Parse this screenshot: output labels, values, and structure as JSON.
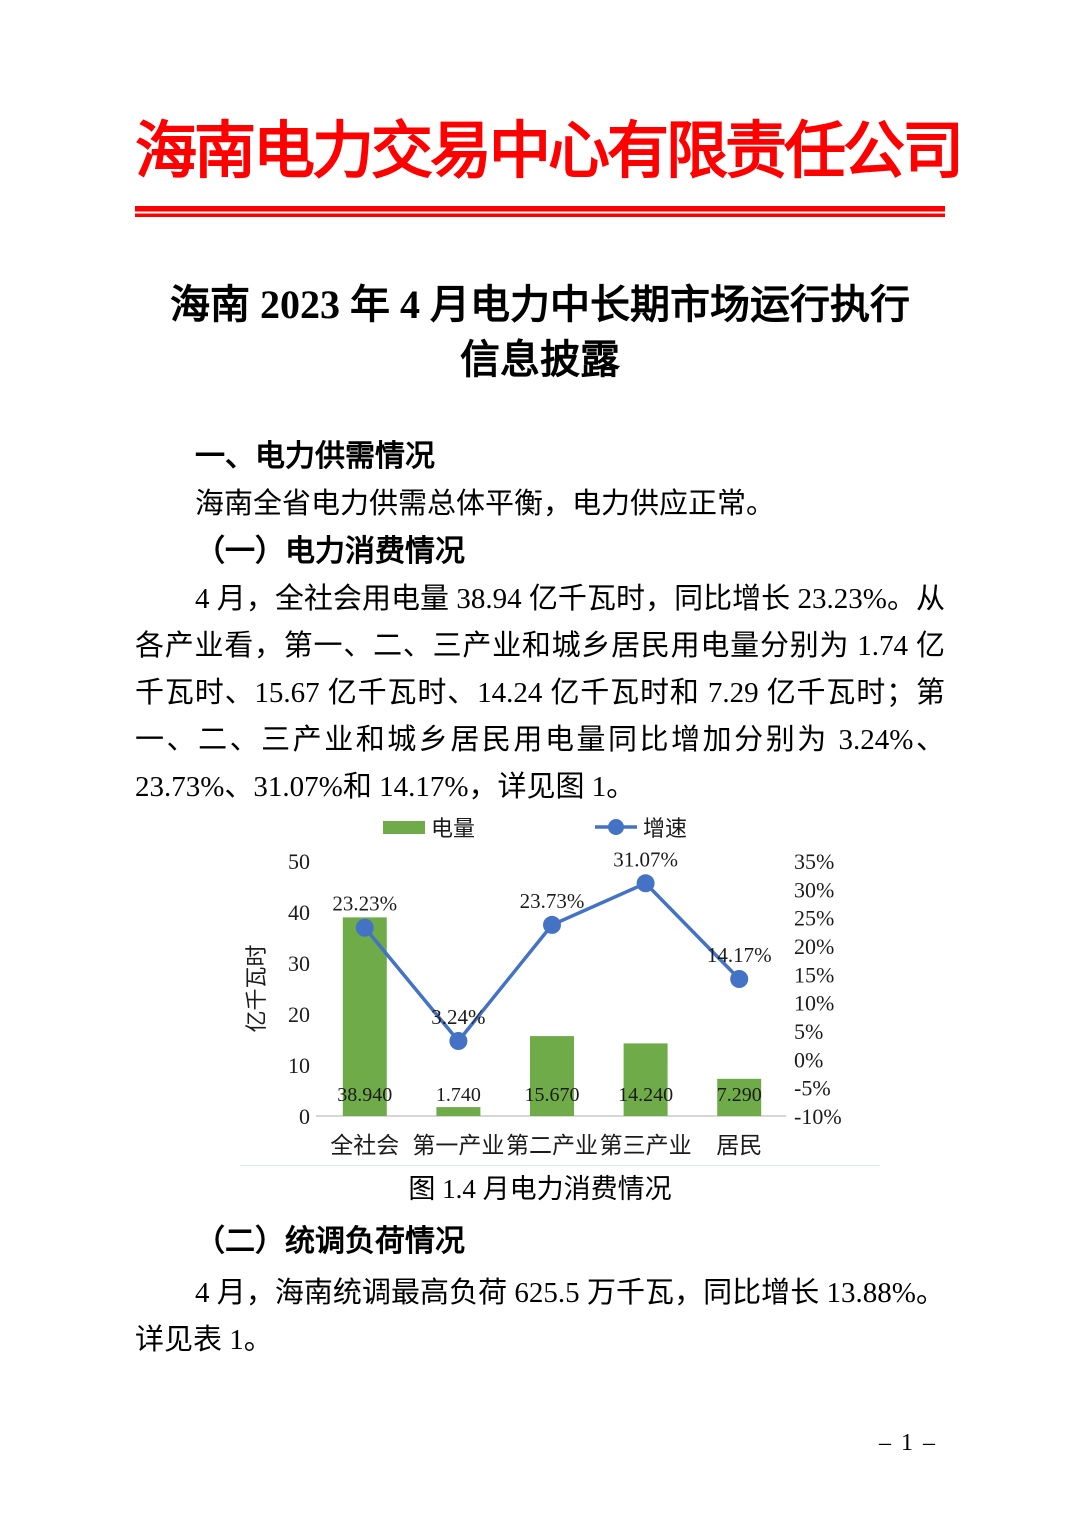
{
  "letterhead": {
    "company": "海南电力交易中心有限责任公司",
    "accent_color": "#fe0000"
  },
  "title": {
    "line1": "海南 2023 年 4 月电力中长期市场运行执行",
    "line2": "信息披露"
  },
  "body": {
    "section1_heading": "一、电力供需情况",
    "p_supply": "海南全省电力供需总体平衡，电力供应正常。",
    "sub1_heading": "（一）电力消费情况",
    "p_consumption": "4 月，全社会用电量 38.94 亿千瓦时，同比增长 23.23%。从各产业看，第一、二、三产业和城乡居民用电量分别为 1.74 亿千瓦时、15.67 亿千瓦时、14.24 亿千瓦时和 7.29 亿千瓦时；第一、二、三产业和城乡居民用电量同比增加分别为 3.24%、23.73%、31.07%和 14.17%，详见图 1。",
    "sub2_heading": "（二）统调负荷情况",
    "p_load": "4 月，海南统调最高负荷 625.5 万千瓦，同比增长 13.88%。详见表 1。"
  },
  "figure": {
    "caption": "图 1.4 月电力消费情况"
  },
  "footer": {
    "page_number": "– 1 –"
  },
  "chart_data": {
    "type": "bar",
    "subtype": "bar+line combo, dual axis",
    "categories": [
      "全社会",
      "第一产业",
      "第二产业",
      "第三产业",
      "居民"
    ],
    "series": [
      {
        "name": "电量",
        "type": "bar",
        "color": "#6fac49",
        "axis": "left",
        "values": [
          38.94,
          1.74,
          15.67,
          14.24,
          7.29
        ],
        "data_labels": [
          "38.940",
          "1.740",
          "15.670",
          "14.240",
          "7.290"
        ]
      },
      {
        "name": "增速",
        "type": "line",
        "color": "#4472c4",
        "axis": "right",
        "values": [
          23.23,
          3.24,
          23.73,
          31.07,
          14.17
        ],
        "data_labels": [
          "23.23%",
          "3.24%",
          "23.73%",
          "31.07%",
          "14.17%"
        ]
      }
    ],
    "left_axis": {
      "title": "亿千瓦时",
      "min": 0,
      "max": 50,
      "ticks": [
        "50",
        "40",
        "30",
        "20",
        "10",
        "0"
      ]
    },
    "right_axis": {
      "min": -10,
      "max": 35,
      "ticks": [
        "35%",
        "30%",
        "25%",
        "20%",
        "15%",
        "10%",
        "5%",
        "0%",
        "-5%",
        "-10%"
      ]
    },
    "legend_position": "top",
    "grid": false,
    "axis_line_color": "#c9c9c9"
  }
}
